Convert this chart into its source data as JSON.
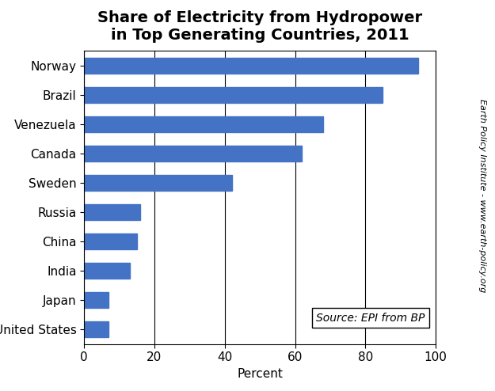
{
  "title": "Share of Electricity from Hydropower\nin Top Generating Countries, 2011",
  "xlabel": "Percent",
  "ylabel_right": "Earth Policy Institute - www.earth-policy.org",
  "source_text": "Source: EPI from BP",
  "categories": [
    "Norway",
    "Brazil",
    "Venezuela",
    "Canada",
    "Sweden",
    "Russia",
    "China",
    "India",
    "Japan",
    "United States"
  ],
  "values": [
    95,
    85,
    68,
    62,
    42,
    16,
    15,
    13,
    7,
    7
  ],
  "bar_color": "#4472C4",
  "xlim": [
    0,
    100
  ],
  "xticks": [
    0,
    20,
    40,
    60,
    80,
    100
  ],
  "background_color": "#ffffff",
  "title_fontsize": 14,
  "axis_fontsize": 11,
  "tick_fontsize": 11,
  "source_fontsize": 10,
  "bar_height": 0.55
}
